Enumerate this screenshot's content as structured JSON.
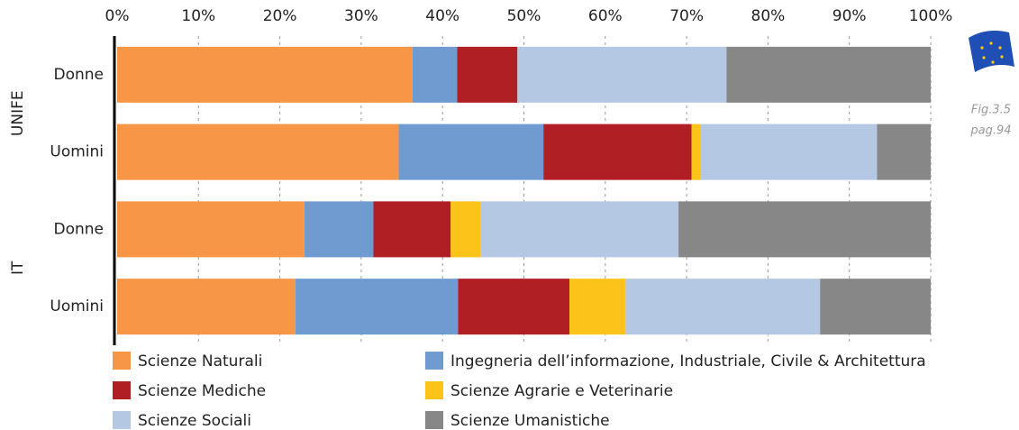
{
  "chart_data": {
    "type": "stacked-bar-horizontal",
    "groups": [
      "UNIFE",
      "IT"
    ],
    "categories": [
      "Donne",
      "Uomini",
      "Donne",
      "Uomini"
    ],
    "series": [
      {
        "name": "Scienze Naturali",
        "color": "#f79646",
        "values": [
          36.3,
          34.6,
          23.0,
          21.9
        ]
      },
      {
        "name": "Ingegneria dell’informazione, Industriale, Civile & Architettura",
        "color": "#6f9bd0",
        "values": [
          5.5,
          17.8,
          8.5,
          20.0
        ]
      },
      {
        "name": "Scienze Mediche",
        "color": "#b01f24",
        "values": [
          7.4,
          18.2,
          9.5,
          13.7
        ]
      },
      {
        "name": "Scienze Agrarie e Veterinarie",
        "color": "#fcc419",
        "values": [
          0,
          1.1,
          3.7,
          6.9
        ]
      },
      {
        "name": "Scienze Sociali",
        "color": "#b4c8e4",
        "values": [
          25.7,
          21.7,
          24.3,
          23.9
        ]
      },
      {
        "name": "Scienze Umanistiche",
        "color": "#878787",
        "values": [
          25.1,
          6.6,
          31.0,
          13.6
        ]
      }
    ],
    "xlim": [
      0,
      100
    ],
    "xticks": [
      {
        "value": 0,
        "label": "0%"
      },
      {
        "value": 10,
        "label": "10%"
      },
      {
        "value": 20,
        "label": "20%"
      },
      {
        "value": 30,
        "label": "30%"
      },
      {
        "value": 40,
        "label": "40%"
      },
      {
        "value": 50,
        "label": "50%"
      },
      {
        "value": 60,
        "label": "60%"
      },
      {
        "value": 70,
        "label": "70%"
      },
      {
        "value": 80,
        "label": "80%"
      },
      {
        "value": 90,
        "label": "90%"
      },
      {
        "value": 100,
        "label": "100%"
      }
    ],
    "grid": true,
    "annotations": [
      "Fig.3.5",
      "pag.94"
    ]
  }
}
